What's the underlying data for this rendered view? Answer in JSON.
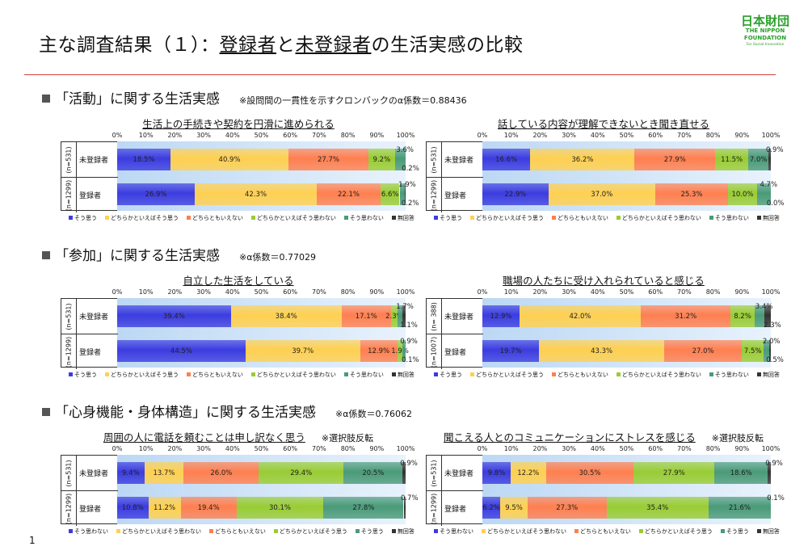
{
  "header": {
    "title_pre": "主な調査結果（１）：",
    "title_u1": "登録者",
    "title_mid": "と",
    "title_u2": "未登録者",
    "title_post": "の生活実感の比較"
  },
  "logo": {
    "mark": "日本財団",
    "en1": "THE NIPPON",
    "en2": "FOUNDATION",
    "sub": "For Social Innovation"
  },
  "sections": [
    {
      "title": "「活動」に関する生活実感",
      "note": "※設問間の一貫性を示すクロンバックのα係数＝0.88436"
    },
    {
      "title": "「参加」に関する生活実感",
      "note": "※α係数＝0.77029"
    },
    {
      "title": "「心身機能・身体構造」に関する生活実感",
      "note": "※α係数＝0.76062"
    }
  ],
  "page_number": "1",
  "colors": [
    "#3c3ce0",
    "#ffd050",
    "#ff7f4f",
    "#99cc33",
    "#4a9a78",
    "#333333"
  ],
  "chart_data": [
    {
      "type": "bar",
      "orientation": "horizontal-stacked-100",
      "title": "生活上の手続きや契約を円滑に進められる",
      "note": "",
      "xlim": [
        0,
        100
      ],
      "ticks": [
        "0%",
        "10%",
        "20%",
        "30%",
        "40%",
        "50%",
        "60%",
        "70%",
        "80%",
        "90%",
        "100%"
      ],
      "legend": [
        "そう思う",
        "どちらかといえばそう思う",
        "どちらともいえない",
        "どちらかといえばそう思わない",
        "そう思わない",
        "無回答"
      ],
      "categories": [
        {
          "group": "未登録者",
          "n": "(n=531)"
        },
        {
          "group": "登録者",
          "n": "(n=1299)"
        }
      ],
      "values": [
        [
          18.5,
          40.9,
          27.7,
          9.2,
          3.6,
          0.2
        ],
        [
          26.9,
          42.3,
          22.1,
          6.6,
          1.9,
          0.2
        ]
      ]
    },
    {
      "type": "bar",
      "orientation": "horizontal-stacked-100",
      "title": "話している内容が理解できないとき聞き直せる",
      "note": "",
      "xlim": [
        0,
        100
      ],
      "ticks": [
        "0%",
        "10%",
        "20%",
        "30%",
        "40%",
        "50%",
        "60%",
        "70%",
        "80%",
        "90%",
        "100%"
      ],
      "legend": [
        "そう思う",
        "どちらかといえばそう思う",
        "どちらともいえない",
        "どちらかといえばそう思わない",
        "そう思わない",
        "無回答"
      ],
      "categories": [
        {
          "group": "未登録者",
          "n": "(n=531)"
        },
        {
          "group": "登録者",
          "n": "(n=1299)"
        }
      ],
      "values": [
        [
          16.6,
          36.2,
          27.9,
          11.5,
          7.0,
          0.9
        ],
        [
          22.9,
          37.0,
          25.3,
          10.0,
          4.7,
          0.0
        ]
      ]
    },
    {
      "type": "bar",
      "orientation": "horizontal-stacked-100",
      "title": "自立した生活をしている",
      "note": "",
      "xlim": [
        0,
        100
      ],
      "ticks": [
        "0%",
        "10%",
        "20%",
        "30%",
        "40%",
        "50%",
        "60%",
        "70%",
        "80%",
        "90%",
        "100%"
      ],
      "legend": [
        "そう思う",
        "どちらかといえばそう思う",
        "どちらともいえない",
        "どちらかといえばそう思わない",
        "そう思わない",
        "無回答"
      ],
      "categories": [
        {
          "group": "未登録者",
          "n": "(n=531)"
        },
        {
          "group": "登録者",
          "n": "(n=1299)"
        }
      ],
      "values": [
        [
          39.4,
          38.4,
          17.1,
          2.3,
          1.7,
          1.1
        ],
        [
          44.5,
          39.7,
          12.9,
          1.9,
          0.9,
          0.1
        ]
      ]
    },
    {
      "type": "bar",
      "orientation": "horizontal-stacked-100",
      "title": "職場の人たちに受け入れられていると感じる",
      "note": "",
      "xlim": [
        0,
        100
      ],
      "ticks": [
        "0%",
        "10%",
        "20%",
        "30%",
        "40%",
        "50%",
        "60%",
        "70%",
        "80%",
        "90%",
        "100%"
      ],
      "legend": [
        "そう思う",
        "どちらかといえばそう思う",
        "どちらともいえない",
        "どちらかといえばそう思わない",
        "そう思わない",
        "無回答"
      ],
      "categories": [
        {
          "group": "未登録者",
          "n": "(n= 388)"
        },
        {
          "group": "登録者",
          "n": "(n=1007)"
        }
      ],
      "values": [
        [
          12.9,
          42.0,
          31.2,
          8.2,
          3.4,
          2.3
        ],
        [
          19.7,
          43.3,
          27.0,
          7.5,
          2.0,
          0.5
        ]
      ]
    },
    {
      "type": "bar",
      "orientation": "horizontal-stacked-100",
      "title": "周囲の人に電話を頼むことは申し訳なく思う",
      "note": "※選択肢反転",
      "xlim": [
        0,
        100
      ],
      "ticks": [
        "0%",
        "10%",
        "20%",
        "30%",
        "40%",
        "50%",
        "60%",
        "70%",
        "80%",
        "90%",
        "100%"
      ],
      "legend": [
        "そう思わない",
        "どちらかといえばそう思わない",
        "どちらともいえない",
        "どちらかといえばそう思う",
        "そう思う",
        "無回答"
      ],
      "categories": [
        {
          "group": "未登録者",
          "n": "(n=531)"
        },
        {
          "group": "登録者",
          "n": "(n=1299)"
        }
      ],
      "values": [
        [
          9.4,
          13.7,
          26.0,
          29.4,
          20.5,
          0.9
        ],
        [
          10.8,
          11.2,
          19.4,
          30.1,
          27.8,
          0.7
        ]
      ]
    },
    {
      "type": "bar",
      "orientation": "horizontal-stacked-100",
      "title": "聞こえる人とのコミュニケーションにストレスを感じる",
      "note": "※選択肢反転",
      "xlim": [
        0,
        100
      ],
      "ticks": [
        "0%",
        "10%",
        "20%",
        "30%",
        "40%",
        "50%",
        "60%",
        "70%",
        "80%",
        "90%",
        "100%"
      ],
      "legend": [
        "そう思わない",
        "どちらかといえばそう思わない",
        "どちらともいえない",
        "どちらかといえばそう思う",
        "そう思う",
        "無回答"
      ],
      "categories": [
        {
          "group": "未登録者",
          "n": "(n=531)"
        },
        {
          "group": "登録者",
          "n": "(n=1299)"
        }
      ],
      "values": [
        [
          9.8,
          12.2,
          30.5,
          27.9,
          18.6,
          0.9
        ],
        [
          6.2,
          9.5,
          27.3,
          35.4,
          21.6,
          0.1
        ]
      ]
    }
  ]
}
